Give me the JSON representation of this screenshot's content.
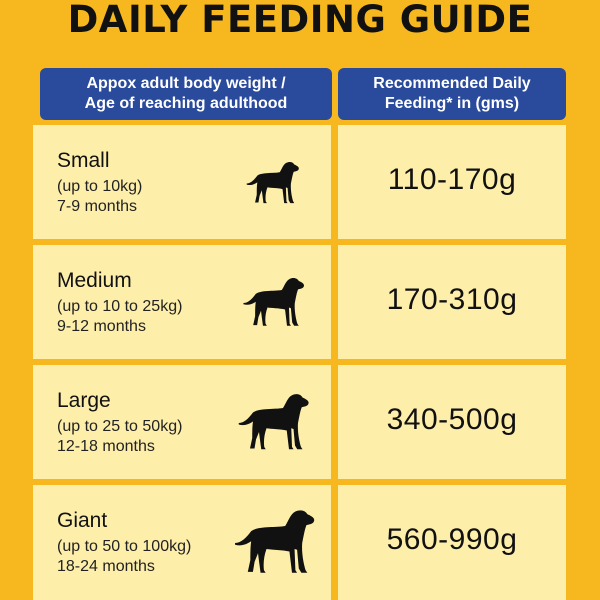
{
  "title": "DAILY FEEDING GUIDE",
  "headers": {
    "left_line1": "Appox adult body weight /",
    "left_line2": "Age of reaching adulthood",
    "right_line1": "Recommended Daily",
    "right_line2": "Feeding* in (gms)"
  },
  "colors": {
    "background": "#F6B81E",
    "header": "#2A4A9C",
    "cell": "#FDEEAA"
  },
  "rows": [
    {
      "size": "Small",
      "weight": "(up to 10kg)",
      "age": "7-9 months",
      "feeding": "110-170g",
      "icon": "dog-silhouette-icon"
    },
    {
      "size": "Medium",
      "weight": "(up to 10 to 25kg)",
      "age": "9-12 months",
      "feeding": "170-310g",
      "icon": "dog-silhouette-icon"
    },
    {
      "size": "Large",
      "weight": "(up to 25 to 50kg)",
      "age": "12-18 months",
      "feeding": "340-500g",
      "icon": "dog-silhouette-icon"
    },
    {
      "size": "Giant",
      "weight": "(up to 50 to 100kg)",
      "age": "18-24 months",
      "feeding": "560-990g",
      "icon": "dog-silhouette-icon"
    }
  ]
}
